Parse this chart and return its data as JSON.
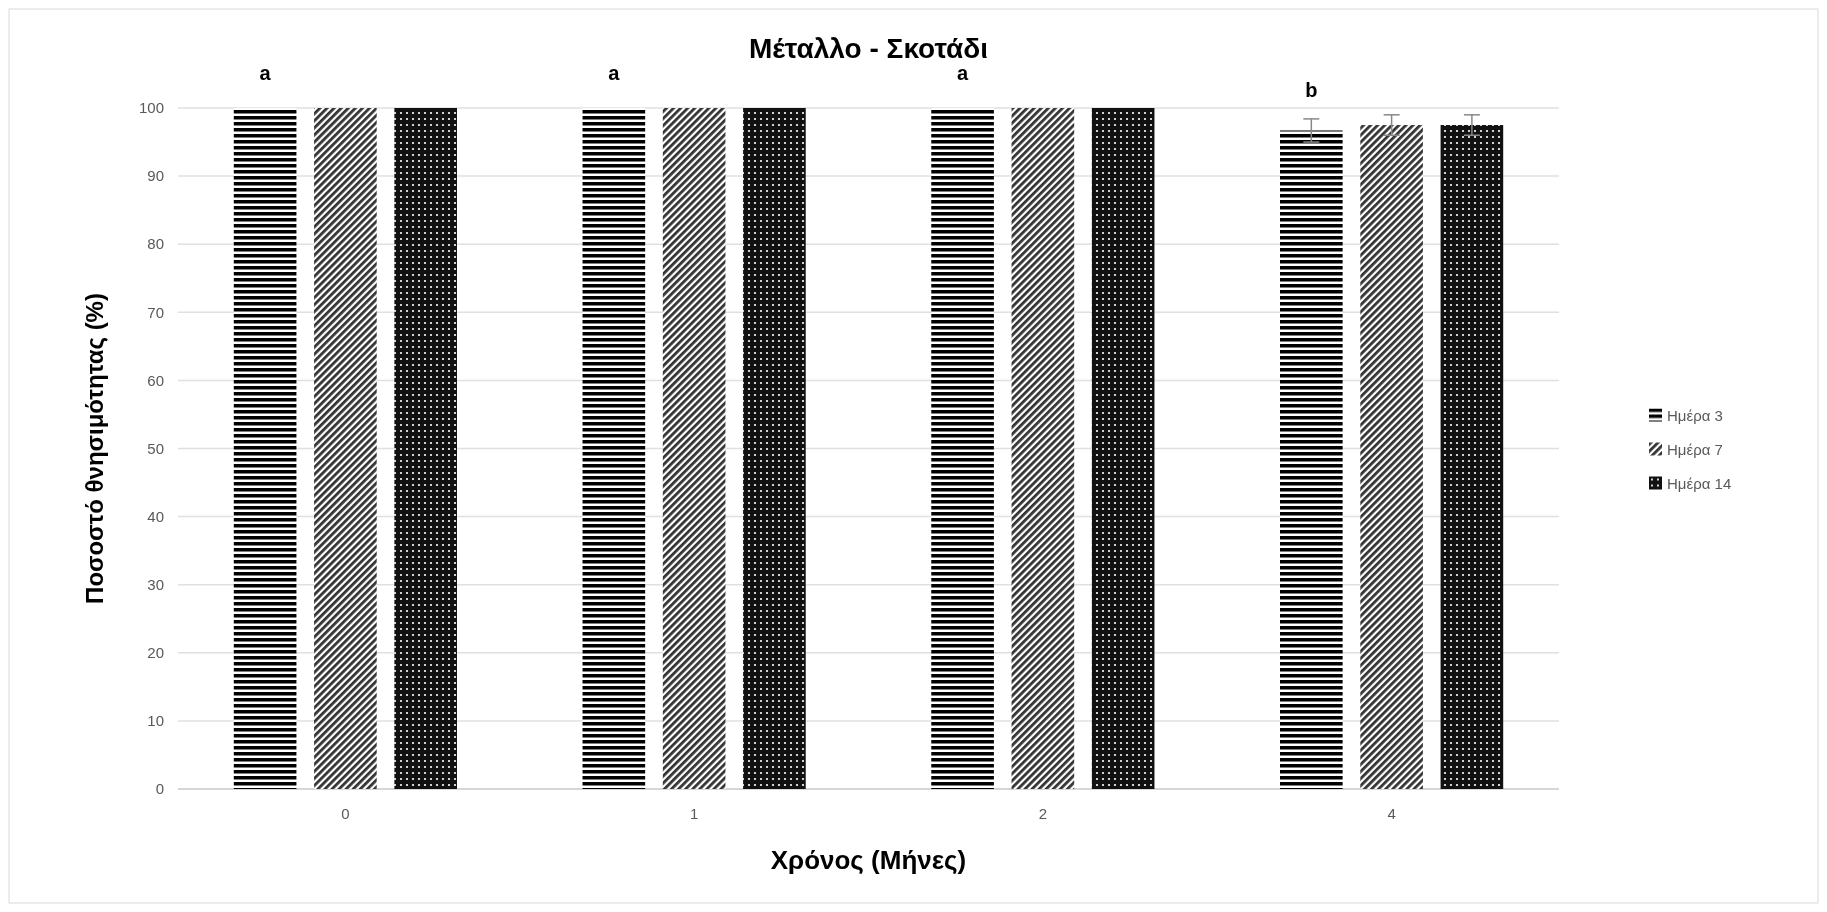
{
  "chart_data": {
    "type": "bar",
    "title": "Μέταλλο - Σκοτάδι",
    "xlabel": "Χρόνος (Μήνες)",
    "ylabel": "Ποσοστό θνησιμότητας (%)",
    "categories": [
      "0",
      "1",
      "2",
      "4"
    ],
    "series": [
      {
        "name": "Ημέρα 3",
        "color": "#000000",
        "values": [
          100,
          100,
          100,
          96.7
        ],
        "errors": [
          null,
          null,
          null,
          1.7
        ]
      },
      {
        "name": "Ημέρα 7",
        "color": "#333333",
        "values": [
          100,
          100,
          100,
          97.5
        ],
        "errors": [
          null,
          null,
          null,
          1.5
        ]
      },
      {
        "name": "Ημέρα 14",
        "color": "#111111",
        "values": [
          100,
          100,
          100,
          97.5
        ],
        "errors": [
          null,
          null,
          null,
          1.5
        ]
      }
    ],
    "ylim": [
      0,
      100
    ],
    "yticks": [
      0,
      10,
      20,
      30,
      40,
      50,
      60,
      70,
      80,
      90,
      100
    ],
    "grid": "y",
    "legend": "right",
    "annotations": [
      "a",
      "a",
      "a",
      "b"
    ]
  }
}
